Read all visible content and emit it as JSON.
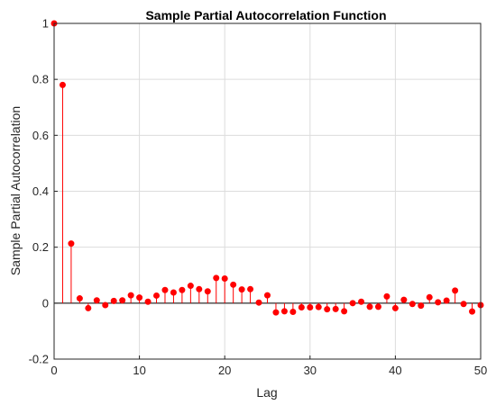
{
  "chart_data": {
    "type": "stem",
    "title": "Sample Partial Autocorrelation Function",
    "xlabel": "Lag",
    "ylabel": "Sample Partial Autocorrelation",
    "xlim": [
      0,
      50
    ],
    "ylim": [
      -0.2,
      1
    ],
    "x_ticks": [
      0,
      10,
      20,
      30,
      40,
      50
    ],
    "y_ticks": [
      -0.2,
      0,
      0.2,
      0.4,
      0.6,
      0.8,
      1
    ],
    "y_tick_labels": [
      "-0.2",
      "0",
      "0.2",
      "0.4",
      "0.6",
      "0.8",
      "1"
    ],
    "grid": true,
    "marker_color": "#ff0000",
    "stem_color": "#ff0000",
    "x": [
      0,
      1,
      2,
      3,
      4,
      5,
      6,
      7,
      8,
      9,
      10,
      11,
      12,
      13,
      14,
      15,
      16,
      17,
      18,
      19,
      20,
      21,
      22,
      23,
      24,
      25,
      26,
      27,
      28,
      29,
      30,
      31,
      32,
      33,
      34,
      35,
      36,
      37,
      38,
      39,
      40,
      41,
      42,
      43,
      44,
      45,
      46,
      47,
      48,
      49,
      50
    ],
    "values": [
      1.0,
      0.78,
      0.213,
      0.017,
      -0.018,
      0.01,
      -0.007,
      0.008,
      0.01,
      0.028,
      0.02,
      0.005,
      0.027,
      0.047,
      0.038,
      0.047,
      0.062,
      0.05,
      0.042,
      0.09,
      0.088,
      0.066,
      0.049,
      0.05,
      0.002,
      0.028,
      -0.033,
      -0.029,
      -0.031,
      -0.015,
      -0.015,
      -0.014,
      -0.022,
      -0.021,
      -0.029,
      0.0,
      0.005,
      -0.013,
      -0.013,
      0.024,
      -0.018,
      0.012,
      -0.003,
      -0.009,
      0.021,
      0.003,
      0.009,
      0.045,
      -0.003,
      -0.03,
      -0.007
    ]
  }
}
